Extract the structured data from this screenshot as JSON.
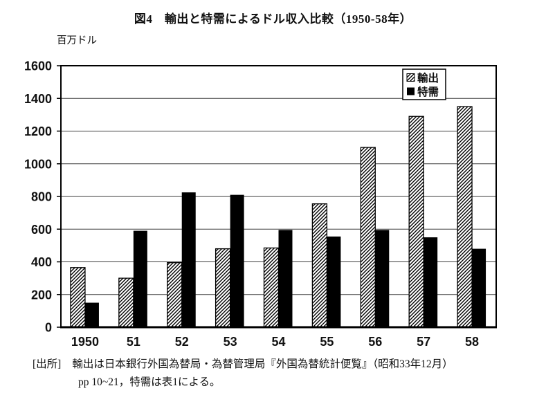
{
  "figure": {
    "title": "図4　輸出と特需によるドル収入比較（1950-58年）",
    "unit_label": "百万ドル"
  },
  "source": {
    "prefix": "[出所]",
    "line1": "輸出は日本銀行外国為替局・為替管理局『外国為替統計便覧』（昭和33年12月）",
    "line2": "pp 10~21，特需は表1による。"
  },
  "colors": {
    "background": "#ffffff",
    "bar_solid": "#000000",
    "bar_hatch_stroke": "#000000",
    "axis": "#000000",
    "grid": "#3a3a3a",
    "text": "#111111"
  },
  "chart_data": {
    "type": "bar",
    "title": "図4　輸出と特需によるドル収入比較（1950-58年）",
    "xlabel": "",
    "ylabel": "百万ドル",
    "categories": [
      "1950",
      "51",
      "52",
      "53",
      "54",
      "55",
      "56",
      "57",
      "58"
    ],
    "series": [
      {
        "name": "輸出",
        "style": "hatched",
        "values": [
          365,
          300,
          395,
          480,
          485,
          755,
          1100,
          1290,
          1350
        ]
      },
      {
        "name": "特需",
        "style": "solid",
        "values": [
          150,
          590,
          825,
          810,
          595,
          555,
          595,
          550,
          480
        ]
      }
    ],
    "ylim": [
      0,
      1600
    ],
    "yticks": [
      0,
      200,
      400,
      600,
      800,
      1000,
      1200,
      1400,
      1600
    ],
    "grid": true,
    "legend_position": "top-right"
  }
}
